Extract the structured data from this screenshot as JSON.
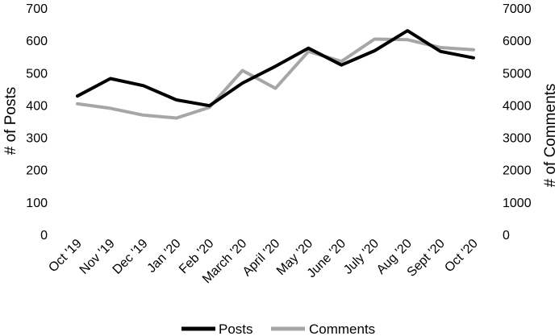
{
  "chart_data": {
    "type": "line",
    "title": "",
    "categories": [
      "Oct '19",
      "Nov '19",
      "Dec '19",
      "Jan '20",
      "Feb '20",
      "March '20",
      "April '20",
      "May '20",
      "June '20",
      "July '20",
      "Aug '20",
      "Sept '20",
      "Oct '20"
    ],
    "series": [
      {
        "name": "Posts",
        "axis": "left",
        "color": "#000000",
        "values": [
          428,
          482,
          460,
          416,
          398,
          468,
          520,
          576,
          524,
          568,
          630,
          566,
          546
        ]
      },
      {
        "name": "Comments",
        "axis": "right",
        "color": "#a6a6a6",
        "values": [
          4040,
          3900,
          3690,
          3600,
          3930,
          5070,
          4520,
          5660,
          5350,
          6040,
          6020,
          5780,
          5710
        ]
      }
    ],
    "ylabel_left": "# of Posts",
    "ylabel_right": "# of Comments",
    "ylim_left": [
      0,
      700
    ],
    "ylim_right": [
      0,
      7000
    ],
    "yticks_left": [
      "0",
      "100",
      "200",
      "300",
      "400",
      "500",
      "600",
      "700"
    ],
    "yticks_right": [
      "0",
      "1000",
      "2000",
      "3000",
      "4000",
      "5000",
      "6000",
      "7000"
    ],
    "grid": false,
    "legend": {
      "position": "bottom",
      "entries": [
        "Posts",
        "Comments"
      ]
    }
  }
}
